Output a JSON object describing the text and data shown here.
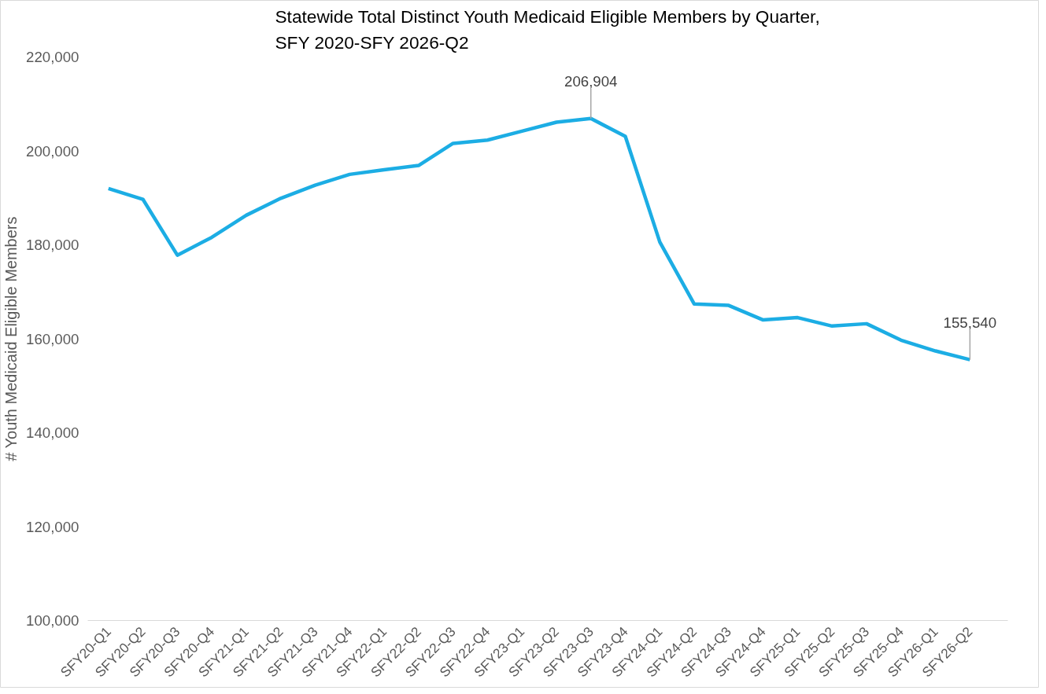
{
  "chart_data": {
    "type": "line",
    "title": "Statewide Total Distinct Youth Medicaid Eligible Members by Quarter,\nSFY 2020-SFY 2026-Q2",
    "ylabel": "# Youth Medicaid Eligible Members",
    "categories": [
      "SFY20-Q1",
      "SFY20-Q2",
      "SFY20-Q3",
      "SFY20-Q4",
      "SFY21-Q1",
      "SFY21-Q2",
      "SFY21-Q3",
      "SFY21-Q4",
      "SFY22-Q1",
      "SFY22-Q2",
      "SFY22-Q3",
      "SFY22-Q4",
      "SFY23-Q1",
      "SFY23-Q2",
      "SFY23-Q3",
      "SFY23-Q4",
      "SFY24-Q1",
      "SFY24-Q2",
      "SFY24-Q3",
      "SFY24-Q4",
      "SFY25-Q1",
      "SFY25-Q2",
      "SFY25-Q3",
      "SFY25-Q4",
      "SFY26-Q1",
      "SFY26-Q2"
    ],
    "series": [
      {
        "color": "#1cade4",
        "values": [
          192000,
          189700,
          177800,
          181600,
          186300,
          189900,
          192700,
          195000,
          196000,
          196900,
          201600,
          202300,
          204200,
          206100,
          206904,
          203100,
          180600,
          167400,
          167100,
          164000,
          164500,
          162700,
          163200,
          159700,
          157400,
          155540
        ],
        "value_labels": [
          null,
          null,
          null,
          null,
          null,
          null,
          null,
          null,
          null,
          null,
          null,
          null,
          null,
          null,
          "206,904",
          null,
          null,
          null,
          null,
          null,
          null,
          null,
          null,
          null,
          null,
          "155,540"
        ]
      }
    ],
    "ylim": [
      100000,
      220000
    ],
    "yticks": [
      {
        "value": 100000,
        "label": "100,000"
      },
      {
        "value": 120000,
        "label": "120,000"
      },
      {
        "value": 140000,
        "label": "140,000"
      },
      {
        "value": 160000,
        "label": "160,000"
      },
      {
        "value": 180000,
        "label": "180,000"
      },
      {
        "value": 200000,
        "label": "200,000"
      },
      {
        "value": 220000,
        "label": "220,000"
      }
    ],
    "grid": false,
    "marker": "none",
    "line_style": "solid"
  }
}
